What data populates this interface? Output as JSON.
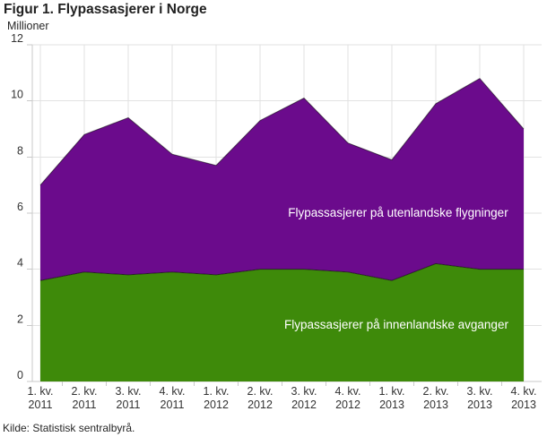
{
  "chart_data": {
    "type": "area",
    "stacked": true,
    "title": "Figur 1. Flypassasjerer i Norge",
    "unit_label": "Millioner",
    "source": "Kilde: Statistisk sentralbyrå.",
    "categories": [
      "1. kv. 2011",
      "2. kv. 2011",
      "3. kv. 2011",
      "4. kv. 2011",
      "1. kv. 2012",
      "2. kv. 2012",
      "3. kv. 2012",
      "4. kv. 2012",
      "1. kv. 2013",
      "2. kv. 2013",
      "3. kv. 2013",
      "4. kv. 2013"
    ],
    "category_lines": [
      [
        "1. kv.",
        "2011"
      ],
      [
        "2. kv.",
        "2011"
      ],
      [
        "3. kv.",
        "2011"
      ],
      [
        "4. kv.",
        "2011"
      ],
      [
        "1. kv.",
        "2012"
      ],
      [
        "2. kv.",
        "2012"
      ],
      [
        "3. kv.",
        "2012"
      ],
      [
        "4. kv.",
        "2012"
      ],
      [
        "1. kv.",
        "2013"
      ],
      [
        "2. kv.",
        "2013"
      ],
      [
        "3. kv.",
        "2013"
      ],
      [
        "4. kv.",
        "2013"
      ]
    ],
    "series": [
      {
        "name": "Flypassasjerer på innenlandske avganger",
        "color": "#3E8A0A",
        "values": [
          3.6,
          3.9,
          3.8,
          3.9,
          3.8,
          4.0,
          4.0,
          3.9,
          3.6,
          4.2,
          4.0,
          4.0
        ]
      },
      {
        "name": "Flypassasjerer på utenlandske flygninger",
        "color": "#6B0B8C",
        "values": [
          3.4,
          4.9,
          5.6,
          4.2,
          3.9,
          5.3,
          6.1,
          4.6,
          4.3,
          5.7,
          6.8,
          5.0
        ]
      }
    ],
    "stacked_totals": [
      7.0,
      8.8,
      9.4,
      8.1,
      7.7,
      9.3,
      10.1,
      8.5,
      7.9,
      9.9,
      10.8,
      9.0
    ],
    "xlabel": "",
    "ylabel": "Millioner",
    "ylim": [
      0,
      12
    ],
    "ytick_step": 2,
    "grid": true,
    "legend": "labels-inside-areas",
    "colors": {
      "grid": "#e2e2e2",
      "axis": "#c9c9c9",
      "tick_text": "#333333",
      "series_label_text": "#ffffff"
    }
  }
}
